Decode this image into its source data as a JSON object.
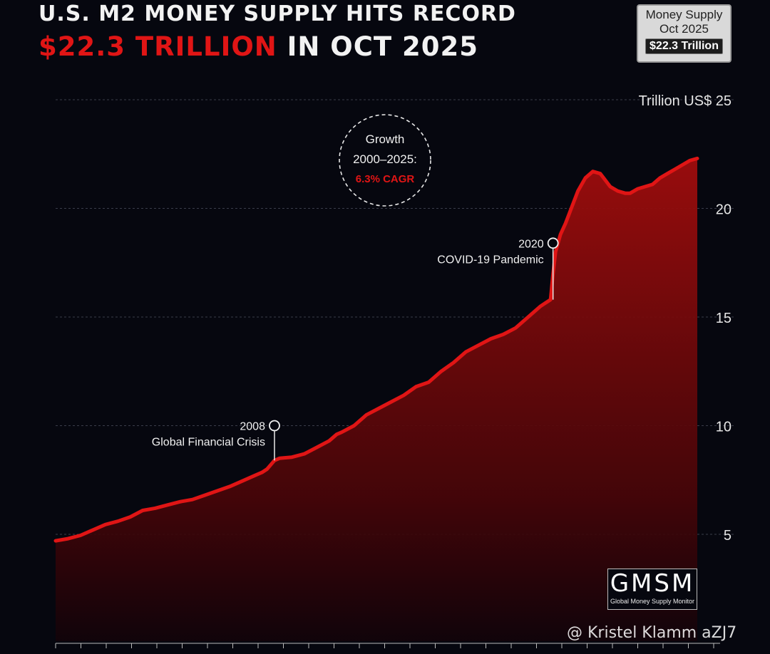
{
  "title": {
    "line1": "U.S. M2 MONEY SUPPLY HITS RECORD",
    "line2_accent": "$22.3 TRILLION",
    "line2_rest": " IN OCT 2025"
  },
  "info_box": {
    "line1": "Money Supply",
    "line2": "Oct 2025",
    "value": "$22.3 Trillion"
  },
  "chart_data": {
    "type": "area",
    "ylabel": "Trillion US$",
    "yticks": [
      5,
      10,
      15,
      20,
      25
    ],
    "ylim": [
      0,
      25
    ],
    "xlim": [
      2000.0,
      2025.8
    ],
    "grid": true,
    "grid_style": "dashed horizontal",
    "line_color": "#e01515",
    "fill_color": "#8a0a0a",
    "series": [
      {
        "x": [
          2000.0,
          2000.5,
          2001.0,
          2001.5,
          2002.0,
          2002.5,
          2003.0,
          2003.5,
          2004.0,
          2004.5,
          2005.0,
          2005.5,
          2006.0,
          2006.5,
          2007.0,
          2007.5,
          2008.0,
          2008.3,
          2008.5,
          2008.8,
          2009.0,
          2009.5,
          2010.0,
          2010.5,
          2011.0,
          2011.3,
          2011.5,
          2012.0,
          2012.5,
          2013.0,
          2013.5,
          2014.0,
          2014.5,
          2015.0,
          2015.5,
          2016.0,
          2016.5,
          2017.0,
          2017.5,
          2018.0,
          2018.5,
          2019.0,
          2019.5,
          2019.9,
          2020.0,
          2020.1,
          2020.3,
          2020.5,
          2020.8,
          2021.0,
          2021.3,
          2021.6,
          2021.9,
          2022.1,
          2022.3,
          2022.6,
          2022.9,
          2023.1,
          2023.4,
          2023.7,
          2024.0,
          2024.3,
          2024.6,
          2024.9,
          2025.2,
          2025.5,
          2025.8
        ],
        "y": [
          4.7,
          4.8,
          4.95,
          5.2,
          5.45,
          5.6,
          5.8,
          6.1,
          6.2,
          6.35,
          6.5,
          6.6,
          6.8,
          7.0,
          7.2,
          7.45,
          7.7,
          7.85,
          8.0,
          8.4,
          8.5,
          8.55,
          8.7,
          9.0,
          9.3,
          9.6,
          9.7,
          10.0,
          10.5,
          10.8,
          11.1,
          11.4,
          11.8,
          12.0,
          12.5,
          12.9,
          13.4,
          13.7,
          14.0,
          14.2,
          14.5,
          15.0,
          15.5,
          15.8,
          17.0,
          18.0,
          18.8,
          19.3,
          20.2,
          20.8,
          21.4,
          21.7,
          21.6,
          21.3,
          21.0,
          20.8,
          20.7,
          20.7,
          20.9,
          21.0,
          21.1,
          21.4,
          21.6,
          21.8,
          22.0,
          22.2,
          22.3
        ]
      }
    ],
    "annotations": [
      {
        "year": "2008",
        "label": "Global Financial Crisis",
        "x": 2008.8,
        "y": 8.4,
        "marker_y": 10.0
      },
      {
        "year": "2020",
        "label": "COVID-19 Pandemic",
        "x": 2020.0,
        "y": 15.8,
        "marker_y": 18.4
      }
    ],
    "callout": {
      "line1": "Growth",
      "line2": "2000–2025:",
      "line3": "6.3% CAGR"
    }
  },
  "logo": {
    "big": "GMSM",
    "small": "Global Money Supply Monitor"
  },
  "watermark": "@ Kristel Klamm aZJ7"
}
